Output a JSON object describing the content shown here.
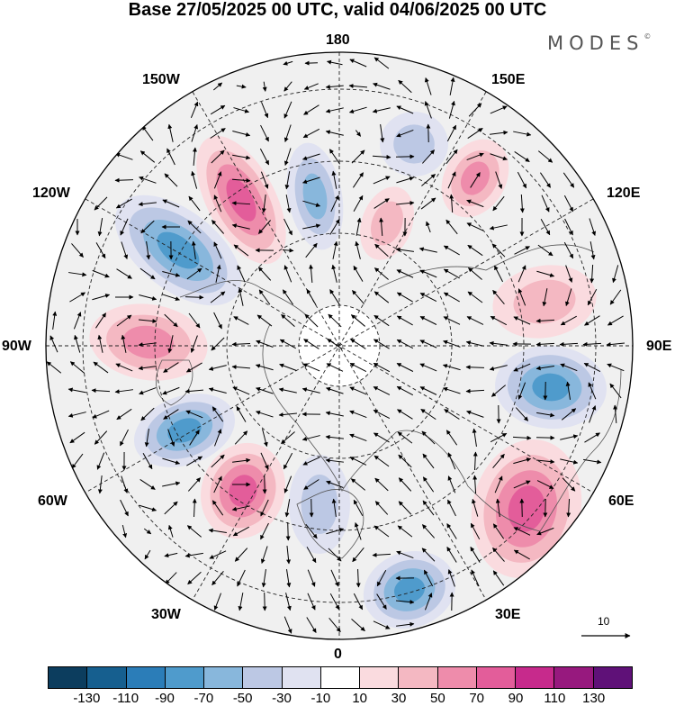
{
  "title": "Base 27/05/2025 00 UTC, valid 04/06/2025 00 UTC",
  "brand": "MODES",
  "brand_mark": "©",
  "longitude_labels": {
    "lon_180": "180",
    "lon_150W": "150W",
    "lon_150E": "150E",
    "lon_120W": "120W",
    "lon_120E": "120E",
    "lon_90W": "90W",
    "lon_90E": "90E",
    "lon_60W": "60W",
    "lon_60E": "60E",
    "lon_30W": "30W",
    "lon_30E": "30E",
    "lon_0": "0"
  },
  "vector_scale_label": "10",
  "colorbar": {
    "colors": [
      "#0c3d5e",
      "#165f8f",
      "#2b7db8",
      "#4f9bcc",
      "#88b7dc",
      "#bcc8e4",
      "#e0e2f1",
      "#ffffff",
      "#fadbdf",
      "#f4b8c2",
      "#ee8cab",
      "#e35d9a",
      "#c72a8c",
      "#97197e",
      "#5f1178"
    ],
    "ticks": [
      "-130",
      "-110",
      "-90",
      "-70",
      "-50",
      "-30",
      "-10",
      "10",
      "30",
      "50",
      "70",
      "90",
      "110",
      "130"
    ]
  },
  "map_data": {
    "projection": "north-polar-stereographic",
    "field": "anomaly (shaded) with wind vectors",
    "anomalies": [
      {
        "value": 95,
        "label": "pos-160W"
      },
      {
        "value": -60,
        "label": "neg-175W"
      },
      {
        "value": -90,
        "label": "neg-130W"
      },
      {
        "value": 65,
        "label": "pos-100W"
      },
      {
        "value": -95,
        "label": "neg-70W"
      },
      {
        "value": 85,
        "label": "pos-40W"
      },
      {
        "value": -55,
        "label": "neg-10W"
      },
      {
        "value": -90,
        "label": "neg-35E"
      },
      {
        "value": 80,
        "label": "pos-60E"
      },
      {
        "value": -85,
        "label": "neg-90E"
      },
      {
        "value": 40,
        "label": "pos-110E"
      },
      {
        "value": 60,
        "label": "pos-155E"
      },
      {
        "value": 40,
        "label": "pos-170E"
      },
      {
        "value": -40,
        "label": "neg-160E"
      }
    ]
  }
}
